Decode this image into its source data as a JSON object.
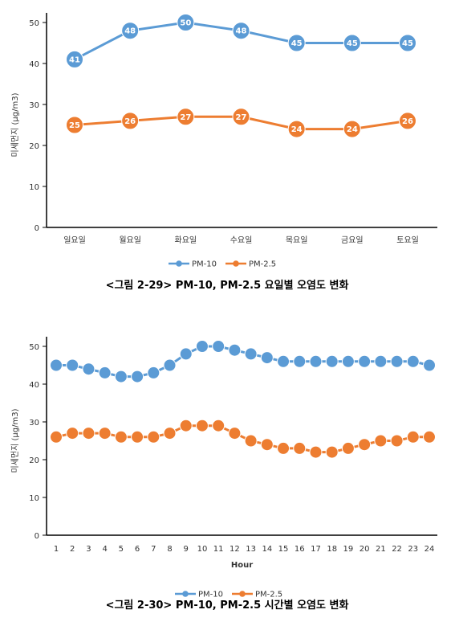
{
  "chart_data": [
    {
      "type": "line",
      "ylabel": "미세먼지 (μg/m3)",
      "xlabel": "",
      "ylim": [
        0,
        50
      ],
      "yticks": [
        "0",
        "10",
        "20",
        "30",
        "40",
        "50"
      ],
      "categories": [
        "일요일",
        "월요일",
        "화요일",
        "수요일",
        "목요일",
        "금요일",
        "토요일"
      ],
      "series": [
        {
          "name": "PM-10",
          "color": "#5b9bd5",
          "values": [
            41,
            48,
            50,
            48,
            45,
            45,
            45
          ],
          "labels": [
            "41",
            "48",
            "50",
            "48",
            "45",
            "45",
            "45"
          ]
        },
        {
          "name": "PM-2.5",
          "color": "#ed7d31",
          "values": [
            25,
            26,
            27,
            27,
            24,
            24,
            26
          ],
          "labels": [
            "25",
            "26",
            "27",
            "27",
            "24",
            "24",
            "26"
          ]
        }
      ],
      "data_labels": true,
      "legend": "bottom",
      "caption": "<그림 2-29> PM-10, PM-2.5 요일별 오염도 변화"
    },
    {
      "type": "line",
      "ylabel": "미세먼지 (μg/m3)",
      "xlabel": "Hour",
      "ylim": [
        0,
        50
      ],
      "yticks": [
        "0",
        "10",
        "20",
        "30",
        "40",
        "50"
      ],
      "categories": [
        "1",
        "2",
        "3",
        "4",
        "5",
        "6",
        "7",
        "8",
        "9",
        "10",
        "11",
        "12",
        "13",
        "14",
        "15",
        "16",
        "17",
        "18",
        "19",
        "20",
        "21",
        "22",
        "23",
        "24"
      ],
      "series": [
        {
          "name": "PM-10",
          "color": "#5b9bd5",
          "values": [
            45,
            45,
            44,
            43,
            42,
            42,
            43,
            45,
            48,
            50,
            50,
            49,
            48,
            47,
            46,
            46,
            46,
            46,
            46,
            46,
            46,
            46,
            46,
            45
          ]
        },
        {
          "name": "PM-2.5",
          "color": "#ed7d31",
          "values": [
            26,
            27,
            27,
            27,
            26,
            26,
            26,
            27,
            29,
            29,
            29,
            27,
            25,
            24,
            23,
            23,
            22,
            22,
            23,
            24,
            25,
            25,
            26,
            26
          ]
        }
      ],
      "data_labels": false,
      "legend": "bottom",
      "caption": "<그림 2-30> PM-10, PM-2.5 시간별 오염도 변화"
    }
  ]
}
